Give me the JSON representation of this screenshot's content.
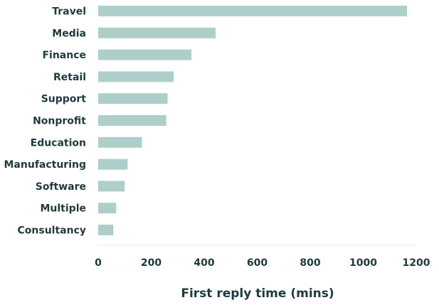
{
  "chart_data": {
    "type": "bar",
    "orientation": "horizontal",
    "title": "",
    "xlabel": "First reply time (mins)",
    "ylabel": "",
    "categories": [
      "Travel",
      "Media",
      "Finance",
      "Retail",
      "Support",
      "Nonprofit",
      "Education",
      "Manufacturing",
      "Software",
      "Multiple",
      "Consultancy"
    ],
    "values": [
      1165,
      443,
      352,
      285,
      262,
      257,
      165,
      111,
      100,
      68,
      57
    ],
    "xlim": [
      0,
      1200
    ],
    "xticks": [
      0,
      200,
      400,
      600,
      800,
      1000,
      1200
    ],
    "grid": false,
    "bar_color": "#aecfc9",
    "text_color": "#203a3e"
  }
}
